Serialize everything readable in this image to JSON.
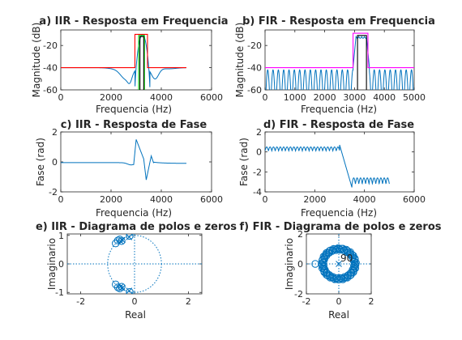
{
  "figure": {
    "background": "#ffffff",
    "colors": {
      "blue": "#0072bd",
      "red": "#ff0000",
      "green": "#00cc00",
      "black": "#000000",
      "magenta": "#ff00ff"
    }
  },
  "chart_data": [
    {
      "id": "a",
      "type": "line",
      "title": "a) IIR - Resposta em Frequencia",
      "xlabel": "Frequencia (Hz)",
      "ylabel": "Magnitude (dB)",
      "xlim": [
        0,
        6000
      ],
      "ylim": [
        -60,
        -6
      ],
      "xticks": [
        0,
        2000,
        4000,
        6000
      ],
      "yticks": [
        -60,
        -40,
        -20
      ],
      "xticklabels": [
        "0",
        "2000",
        "4000",
        "6000"
      ],
      "yticklabels": [
        "-60",
        "-40",
        "-20"
      ],
      "series": [
        {
          "kind": "iir_mag",
          "color": "#0072bd"
        },
        {
          "kind": "mask",
          "color": "#ff0000",
          "x": [
            0,
            2950,
            2950,
            3450,
            3450,
            5000
          ],
          "y": [
            -40,
            -40,
            -10,
            -10,
            -40,
            -40
          ]
        },
        {
          "kind": "mask",
          "color": "#00cc00",
          "x": [
            3100,
            3100,
            3330,
            3330
          ],
          "y": [
            -60,
            -11,
            -11,
            -60
          ]
        },
        {
          "kind": "mask",
          "color": "#000000",
          "x": [
            3150,
            3150,
            3300,
            3300
          ],
          "y": [
            -60,
            -12,
            -12,
            -60
          ]
        }
      ]
    },
    {
      "id": "b",
      "type": "line",
      "title": "b) FIR - Resposta em Frequencia",
      "xlabel": "Frequencia (Hz)",
      "ylabel": "Magnitude (dB)",
      "xlim": [
        0,
        5000
      ],
      "ylim": [
        -60,
        -6
      ],
      "xticks": [
        0,
        1000,
        2000,
        3000,
        4000,
        5000
      ],
      "yticks": [
        -60,
        -40,
        -20
      ],
      "xticklabels": [
        "0",
        "1000",
        "2000",
        "3000",
        "4000",
        "5000"
      ],
      "yticklabels": [
        "-60",
        "-40",
        "-20"
      ],
      "series": [
        {
          "kind": "fir_mag",
          "color": "#0072bd"
        },
        {
          "kind": "mask",
          "color": "#ff00ff",
          "x": [
            0,
            2950,
            2950,
            3450,
            3450,
            5000
          ],
          "y": [
            -40,
            -40,
            -9,
            -9,
            -40,
            -40
          ]
        },
        {
          "kind": "mask",
          "color": "#000000",
          "x": [
            3100,
            3100,
            3400,
            3400
          ],
          "y": [
            -60,
            -11,
            -11,
            -60
          ]
        }
      ]
    },
    {
      "id": "c",
      "type": "line",
      "title": "c) IIR - Resposta de Fase",
      "xlabel": "Frequencia (Hz)",
      "ylabel": "Fase (rad)",
      "xlim": [
        0,
        6000
      ],
      "ylim": [
        -2,
        2
      ],
      "xticks": [
        0,
        2000,
        4000,
        6000
      ],
      "yticks": [
        -2,
        0,
        2
      ],
      "xticklabels": [
        "0",
        "2000",
        "4000",
        "6000"
      ],
      "yticklabels": [
        "-2",
        "0",
        "2"
      ],
      "series": [
        {
          "kind": "iir_phase",
          "color": "#0072bd"
        }
      ]
    },
    {
      "id": "d",
      "type": "line",
      "title": "d) FIR - Resposta de Fase",
      "xlabel": "Frequencia (Hz)",
      "ylabel": "Fase (rad)",
      "xlim": [
        0,
        6000
      ],
      "ylim": [
        -4,
        2
      ],
      "xticks": [
        0,
        2000,
        4000,
        6000
      ],
      "yticks": [
        -4,
        -2,
        0,
        2
      ],
      "xticklabels": [
        "0",
        "2000",
        "4000",
        "6000"
      ],
      "yticklabels": [
        "-4",
        "-2",
        "0",
        "2"
      ],
      "series": [
        {
          "kind": "fir_phase",
          "color": "#0072bd"
        }
      ]
    },
    {
      "id": "e",
      "type": "scatter",
      "title": "e) IIR - Diagrama de polos e zeros",
      "xlabel": "Real",
      "ylabel": "Imaginario",
      "xlim": [
        -2.5,
        2.5
      ],
      "ylim": [
        -1.05,
        1.05
      ],
      "xticks": [
        -2,
        0,
        2
      ],
      "yticks": [
        -1,
        0,
        1
      ],
      "xticklabels": [
        "-2",
        "0",
        "2"
      ],
      "yticklabels": [
        "-1",
        "0",
        "1"
      ],
      "unit_circle": true,
      "zeros": [
        [
          -0.62,
          0.82
        ],
        [
          -0.7,
          0.72
        ],
        [
          -0.55,
          0.86
        ],
        [
          -0.48,
          0.8
        ],
        [
          -0.62,
          -0.82
        ],
        [
          -0.7,
          -0.72
        ],
        [
          -0.55,
          -0.86
        ],
        [
          -0.48,
          -0.8
        ],
        [
          -0.18,
          0.98
        ],
        [
          -0.18,
          -0.98
        ]
      ],
      "poles": [
        [
          -0.52,
          0.8
        ],
        [
          -0.45,
          0.84
        ],
        [
          -0.52,
          -0.8
        ],
        [
          -0.45,
          -0.84
        ],
        [
          -0.2,
          0.94
        ],
        [
          -0.2,
          -0.94
        ]
      ],
      "color": "#0072bd"
    },
    {
      "id": "f",
      "type": "scatter",
      "title": "f) FIR - Diagrama de polos e zeros",
      "xlabel": "Real",
      "ylabel": "Imaginario",
      "xlim": [
        -2,
        2
      ],
      "ylim": [
        -2,
        2
      ],
      "xticks": [
        -2,
        0,
        2
      ],
      "yticks": [
        -2,
        0,
        2
      ],
      "xticklabels": [
        "-2",
        "0",
        "2"
      ],
      "yticklabels": [
        "-2",
        "0",
        "2"
      ],
      "unit_circle": true,
      "zero_count": 90,
      "outlier_zeros": [
        [
          -1.45,
          0.0
        ]
      ],
      "pole_at_origin": true,
      "annotation": "90",
      "color": "#0072bd"
    }
  ]
}
